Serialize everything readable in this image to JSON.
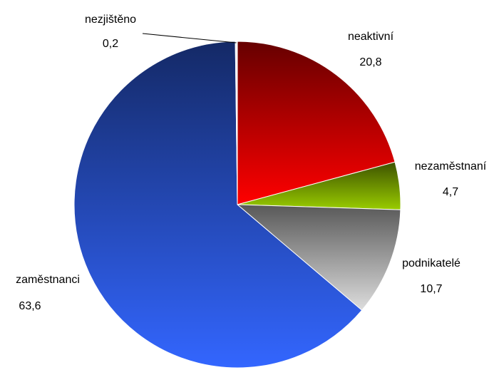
{
  "chart_data": {
    "type": "pie",
    "categories": [
      "neaktivní",
      "nezaměstnaní",
      "podnikatelé",
      "zaměstnanci",
      "nezjištěno"
    ],
    "values": [
      20.8,
      4.7,
      10.7,
      63.6,
      0.2
    ],
    "value_labels": [
      "20,8",
      "4,7",
      "10,7",
      "63,6",
      "0,2"
    ],
    "colors": [
      "#ff0000",
      "#99cc00",
      "#dddddd",
      "#3366ff",
      "#ffffff"
    ]
  }
}
